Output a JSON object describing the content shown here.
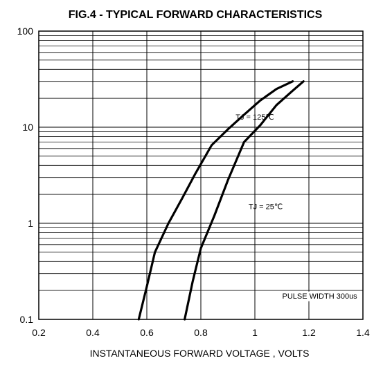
{
  "chart_data": {
    "type": "line",
    "title": "FIG.4 - TYPICAL FORWARD CHARACTERISTICS",
    "xlabel": "INSTANTANEOUS FORWARD VOLTAGE , VOLTS",
    "ylabel": "",
    "xlim": [
      0.2,
      1.4
    ],
    "ylim": [
      0.1,
      100
    ],
    "yscale": "log",
    "grid": true,
    "x_ticks": [
      "0.2",
      "0.4",
      "0.6",
      "0.8",
      "1",
      "1.2",
      "1.4"
    ],
    "y_ticks": [
      "0.1",
      "1",
      "10",
      "100"
    ],
    "series": [
      {
        "name": "TJ = 125℃",
        "points": [
          [
            0.57,
            0.1
          ],
          [
            0.6,
            0.22
          ],
          [
            0.63,
            0.5
          ],
          [
            0.68,
            1.0
          ],
          [
            0.73,
            1.8
          ],
          [
            0.78,
            3.3
          ],
          [
            0.84,
            6.5
          ],
          [
            0.9,
            9.5
          ],
          [
            0.96,
            13.5
          ],
          [
            1.02,
            19
          ],
          [
            1.08,
            25
          ],
          [
            1.14,
            30
          ]
        ]
      },
      {
        "name": "TJ = 25℃",
        "points": [
          [
            0.74,
            0.1
          ],
          [
            0.77,
            0.25
          ],
          [
            0.8,
            0.55
          ],
          [
            0.85,
            1.2
          ],
          [
            0.9,
            2.8
          ],
          [
            0.96,
            7.0
          ],
          [
            1.02,
            10.5
          ],
          [
            1.08,
            17
          ],
          [
            1.14,
            24
          ],
          [
            1.18,
            30
          ]
        ]
      }
    ],
    "annotations": [
      {
        "text": "TJ = 125℃",
        "x": 1.0,
        "y": 12
      },
      {
        "text": "TJ = 25℃",
        "x": 1.04,
        "y": 1.4
      },
      {
        "text": "PULSE WIDTH 300us",
        "x": 1.24,
        "y": 0.165
      }
    ]
  }
}
